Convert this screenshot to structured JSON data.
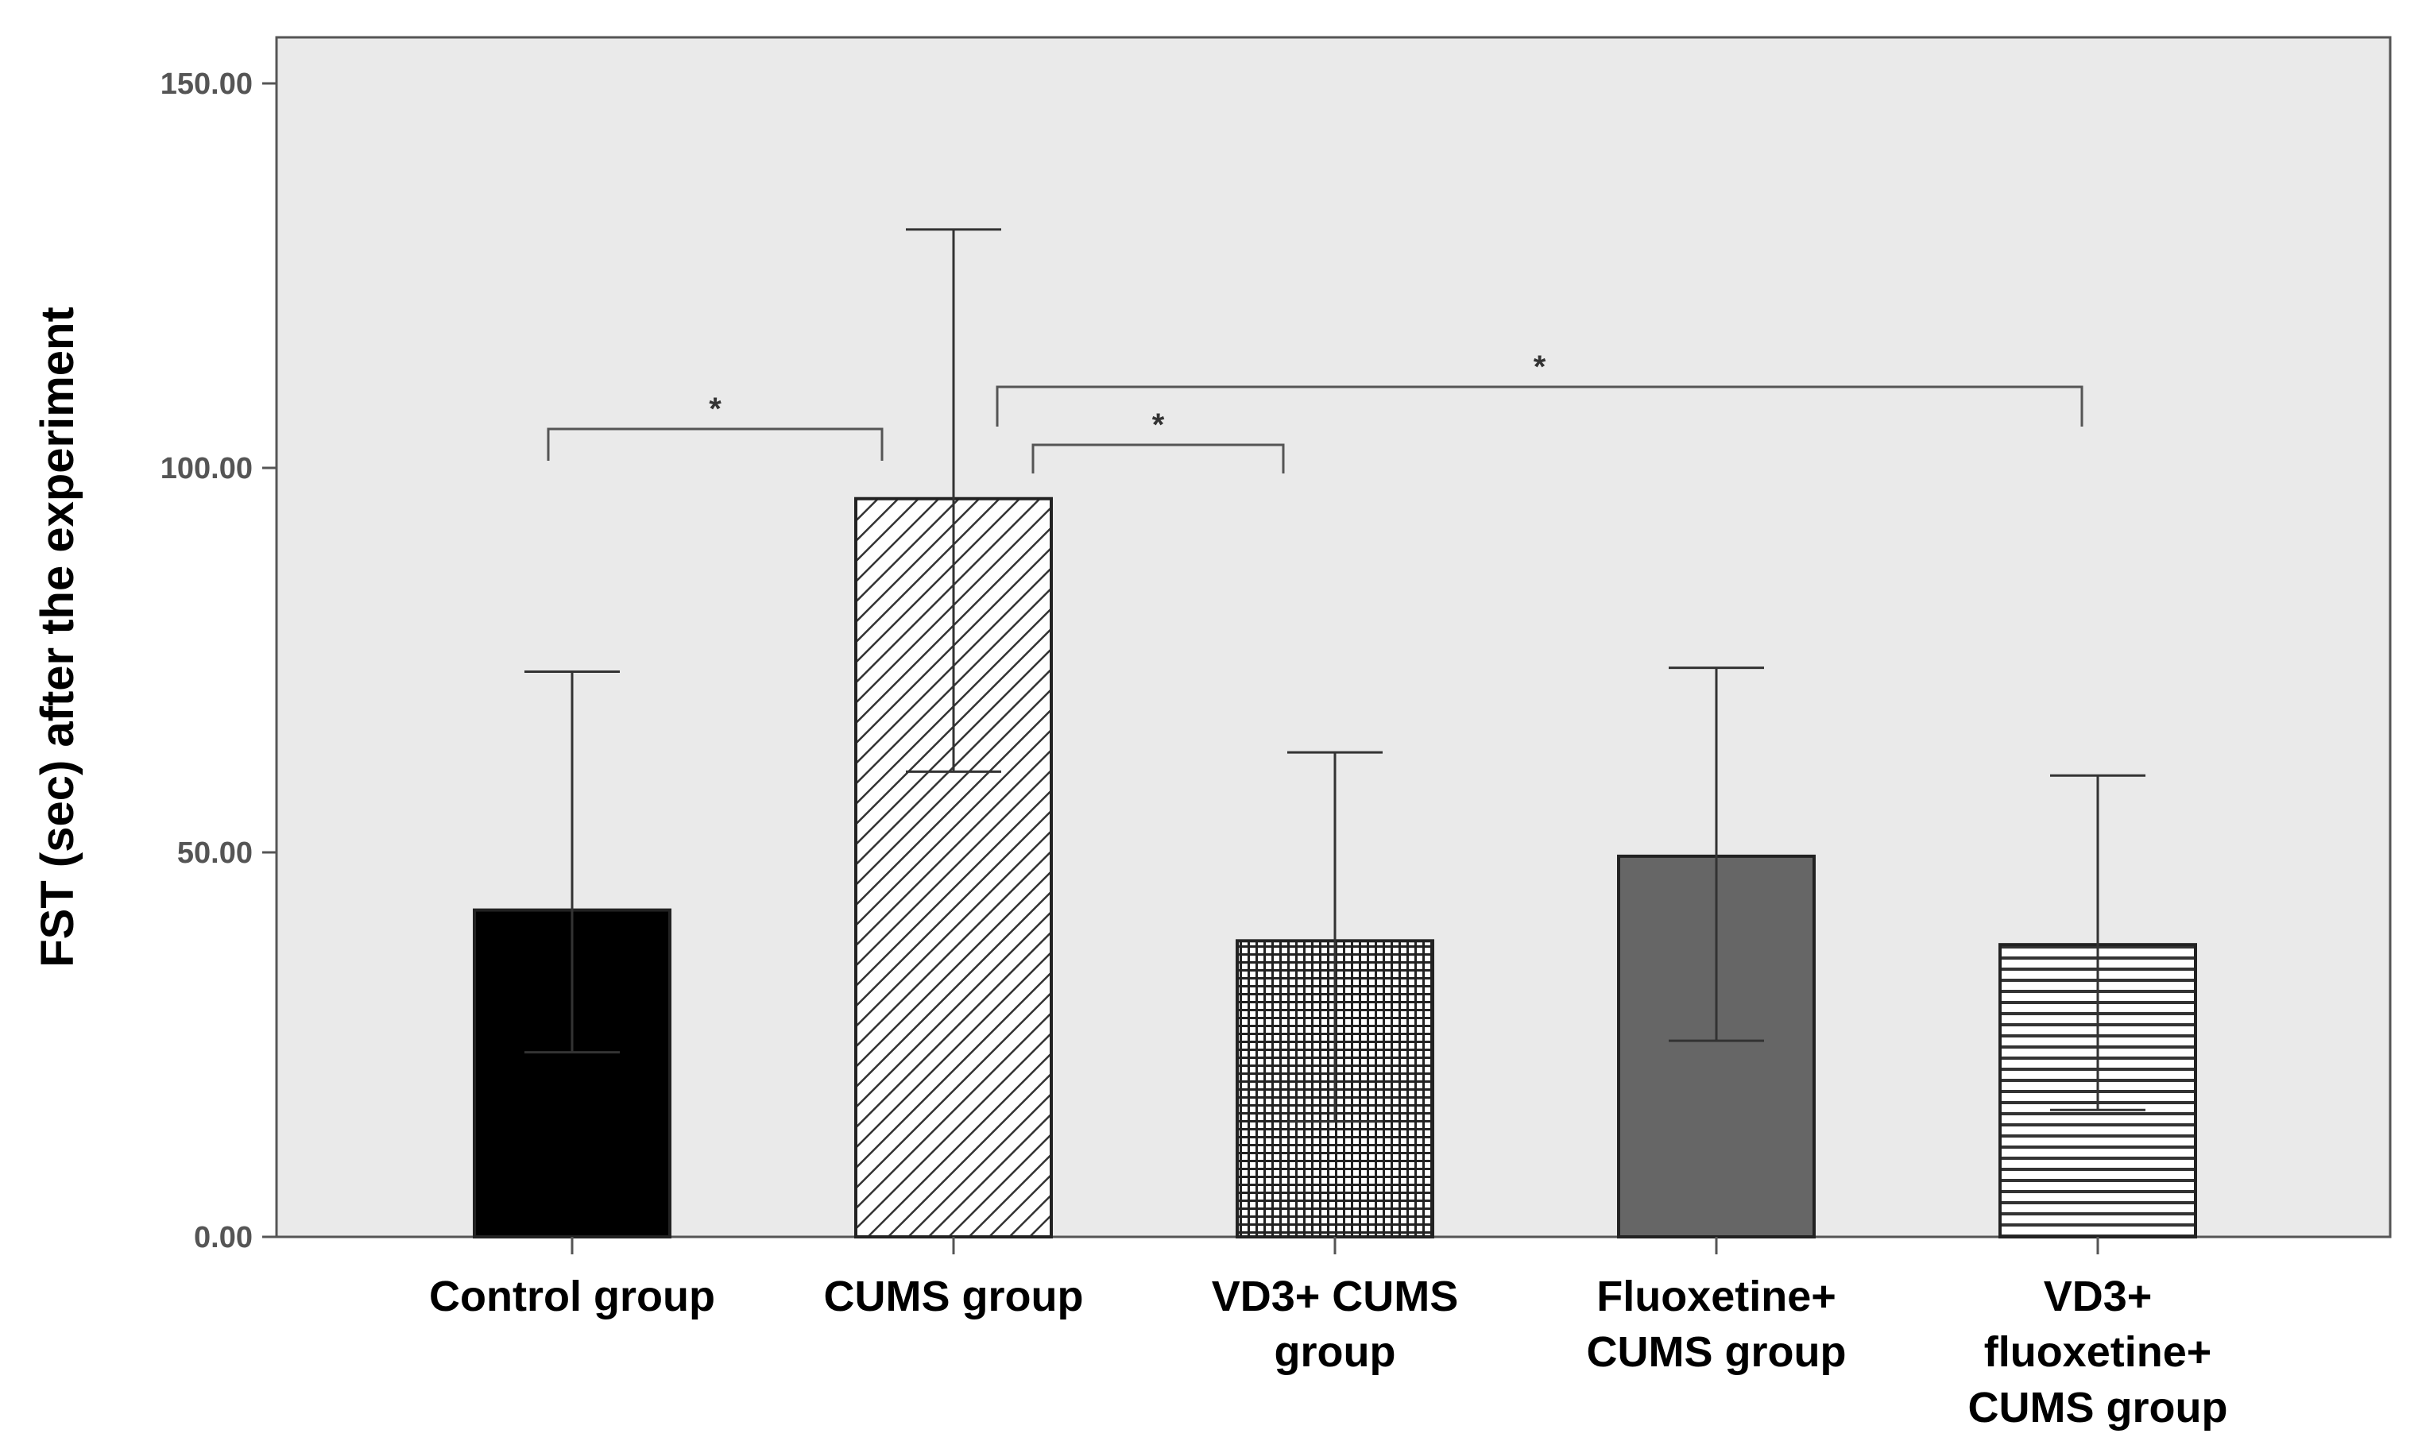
{
  "chart_data": {
    "type": "bar",
    "title": "",
    "xlabel": "",
    "ylabel": "FST (sec) after the experiment",
    "ylim": [
      0,
      155
    ],
    "yticks": [
      0,
      50,
      100,
      150
    ],
    "ytick_labels": [
      "0.00",
      "50.00",
      "100.00",
      "150.00"
    ],
    "grid": false,
    "categories": [
      [
        "Control group"
      ],
      [
        "CUMS group"
      ],
      [
        "VD3+ CUMS",
        "group"
      ],
      [
        "Fluoxetine+",
        "CUMS group"
      ],
      [
        "VD3+",
        "fluoxetine+",
        "CUMS group"
      ]
    ],
    "values": [
      42.5,
      96,
      38.5,
      49.5,
      38
    ],
    "error_low": [
      24,
      60.5,
      15,
      25.5,
      16.5
    ],
    "error_high": [
      73.5,
      131,
      63,
      74,
      60
    ],
    "bar_fills": [
      "solid-black",
      "diagonal-hatch",
      "crosshatch",
      "solid-gray",
      "horizontal-lines"
    ],
    "significance": [
      {
        "from": 0,
        "to": 1,
        "label": "*"
      },
      {
        "from": 1,
        "to": 2,
        "label": "*"
      },
      {
        "from": 1,
        "to": 4,
        "label": "*"
      }
    ]
  },
  "colors": {
    "plot_background": "#eaeaea",
    "axis": "#555555",
    "bar_outline": "#222222",
    "bar_black": "#000000",
    "bar_gray": "#666666",
    "error_bar": "#333333"
  }
}
